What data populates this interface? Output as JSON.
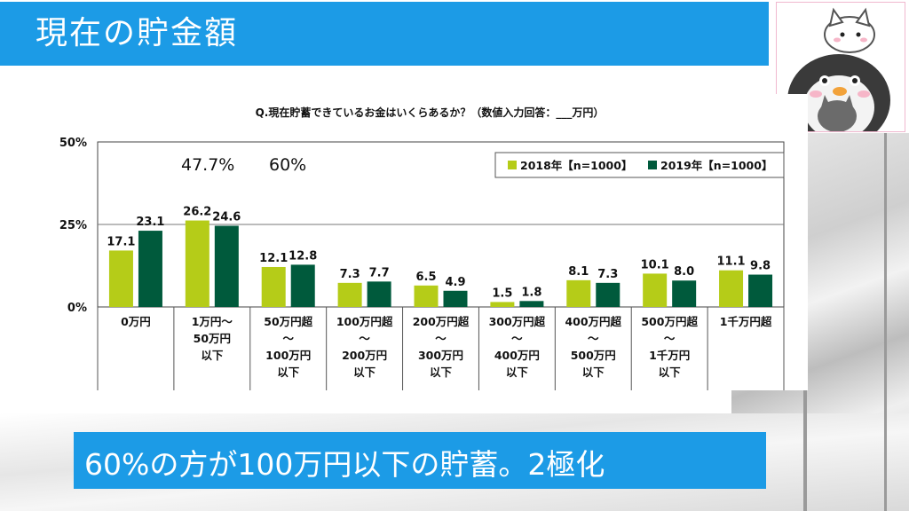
{
  "slide": {
    "title": "現在の貯金額",
    "caption": "60%の方が100万円以下の貯蓄。2極化"
  },
  "chart_data": {
    "type": "bar",
    "title": "Q.現在貯蓄できているお金はいくらあるか？（数値入力回答：___万円）",
    "categories": [
      [
        "0万円"
      ],
      [
        "1万円～",
        "50万円",
        "以下"
      ],
      [
        "50万円超",
        "～",
        "100万円",
        "以下"
      ],
      [
        "100万円超",
        "～",
        "200万円",
        "以下"
      ],
      [
        "200万円超",
        "～",
        "300万円",
        "以下"
      ],
      [
        "300万円超",
        "～",
        "400万円",
        "以下"
      ],
      [
        "400万円超",
        "～",
        "500万円",
        "以下"
      ],
      [
        "500万円超",
        "～",
        "1千万円",
        "以下"
      ],
      [
        "1千万円超"
      ]
    ],
    "series": [
      {
        "name": "2018年【n=1000】",
        "color": "#b5cc18",
        "values": [
          17.1,
          26.2,
          12.1,
          7.3,
          6.5,
          1.5,
          8.1,
          10.1,
          11.1
        ]
      },
      {
        "name": "2019年【n=1000】",
        "color": "#005a3c",
        "values": [
          23.1,
          24.6,
          12.8,
          7.7,
          4.9,
          1.8,
          7.3,
          8.0,
          9.8
        ]
      }
    ],
    "value_labels": [
      "17.1",
      "26.2",
      "12.1",
      "7.3",
      "6.5",
      "1.5",
      "8.1",
      "10.1",
      "11.1",
      "23.1",
      "24.6",
      "12.8",
      "7.7",
      "4.9",
      "1.8",
      "7.3",
      "8.0",
      "9.8"
    ],
    "yticks": [
      "50%",
      "25%",
      "0%"
    ],
    "ytick_values": [
      50,
      25,
      0
    ],
    "ylim": [
      0,
      50
    ],
    "legend_position": "top-right",
    "annotations": [
      "47.7%",
      "60%"
    ]
  }
}
